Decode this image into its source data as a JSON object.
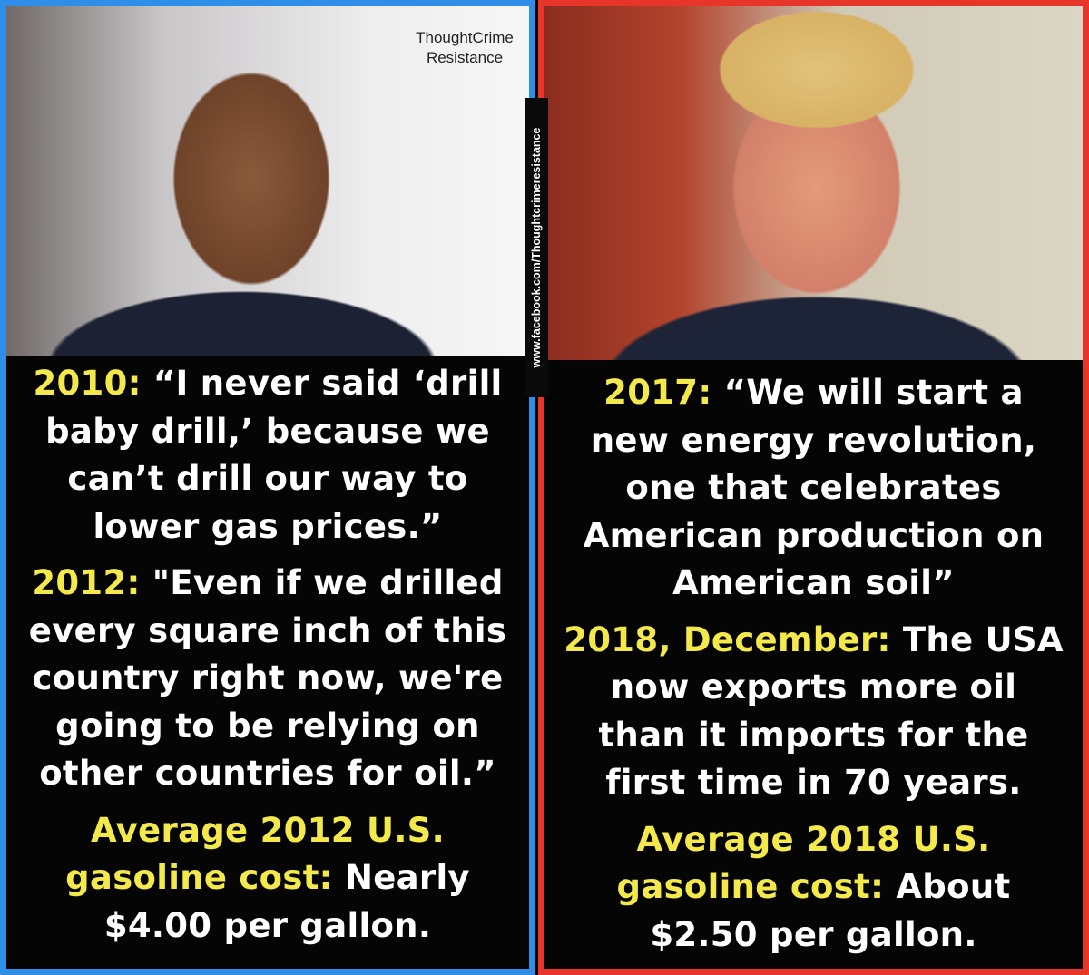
{
  "watermark": {
    "top": [
      "ThoughtCrime",
      "Resistance"
    ],
    "side": "www.facebook.com/Thoughtcrimeresistance"
  },
  "colors": {
    "left_border": "#2f8fe8",
    "right_border": "#e8352a",
    "highlight": "#f3e94b",
    "text": "#ffffff",
    "background": "#050505"
  },
  "left": {
    "blocks": [
      {
        "lines": [
          [
            {
              "t": "2010: ",
              "y": true
            },
            {
              "t": "“I never said ‘drill"
            }
          ],
          [
            {
              "t": "baby drill,’ because we"
            }
          ],
          [
            {
              "t": "can’t drill our way to"
            }
          ],
          [
            {
              "t": "lower gas prices.”"
            }
          ]
        ]
      },
      {
        "lines": [
          [
            {
              "t": "2012: ",
              "y": true
            },
            {
              "t": "\"Even if we drilled"
            }
          ],
          [
            {
              "t": "every square inch of this"
            }
          ],
          [
            {
              "t": "country right now, we're"
            }
          ],
          [
            {
              "t": "going to be relying on"
            }
          ],
          [
            {
              "t": "other countries for oil.”"
            }
          ]
        ]
      },
      {
        "lines": [
          [
            {
              "t": "Average 2012 U.S.",
              "y": true
            }
          ],
          [
            {
              "t": "gasoline cost: ",
              "y": true
            },
            {
              "t": "Nearly"
            }
          ],
          [
            {
              "t": "$4.00 per gallon."
            }
          ]
        ]
      }
    ]
  },
  "right": {
    "blocks": [
      {
        "lines": [
          [
            {
              "t": "2017: ",
              "y": true
            },
            {
              "t": "“We will start a"
            }
          ],
          [
            {
              "t": "new energy revolution,"
            }
          ],
          [
            {
              "t": "one that celebrates"
            }
          ],
          [
            {
              "t": "American production on"
            }
          ],
          [
            {
              "t": "American soil”"
            }
          ]
        ]
      },
      {
        "lines": [
          [
            {
              "t": "2018, December: ",
              "y": true
            },
            {
              "t": "The USA"
            }
          ],
          [
            {
              "t": "now exports more oil"
            }
          ],
          [
            {
              "t": "than it imports for the"
            }
          ],
          [
            {
              "t": "first time in 70 years."
            }
          ]
        ]
      },
      {
        "lines": [
          [
            {
              "t": "Average 2018 U.S.",
              "y": true
            }
          ],
          [
            {
              "t": "gasoline cost: ",
              "y": true
            },
            {
              "t": "About"
            }
          ],
          [
            {
              "t": "$2.50 per gallon."
            }
          ]
        ]
      }
    ]
  }
}
